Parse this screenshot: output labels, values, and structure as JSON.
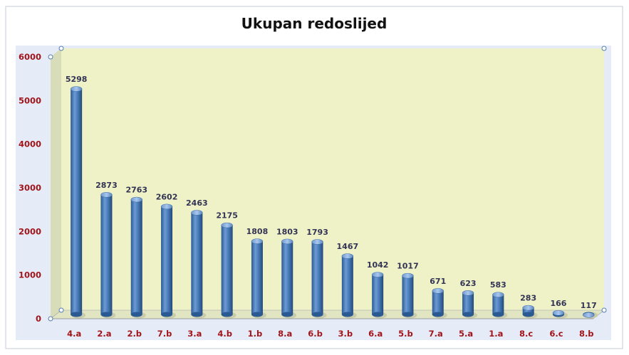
{
  "chart_data": {
    "type": "bar",
    "title": "Ukupan redoslijed",
    "categories": [
      "4.a",
      "2.a",
      "2.b",
      "7.b",
      "3.a",
      "4.b",
      "1.b",
      "8.a",
      "6.b",
      "3.b",
      "6.a",
      "5.b",
      "7.a",
      "5.a",
      "1.a",
      "8.c",
      "6.c",
      "8.b"
    ],
    "values": [
      5298,
      2873,
      2763,
      2602,
      2463,
      2175,
      1808,
      1803,
      1793,
      1467,
      1042,
      1017,
      671,
      623,
      583,
      283,
      166,
      117
    ],
    "data_labels": [
      "5298",
      "2873",
      "2763",
      "2602",
      "2463",
      "2175",
      "1808",
      "1803",
      "1793",
      "1467",
      "1042",
      "1017",
      "671",
      "623",
      "583",
      "283",
      "166",
      "117"
    ],
    "y_ticks": [
      "0",
      "1000",
      "2000",
      "3000",
      "4000",
      "5000",
      "6000"
    ],
    "ylim": [
      0,
      6000
    ],
    "xlabel": "",
    "ylabel": "",
    "grid": false,
    "legend": "none",
    "colors": {
      "bar": "#4a7ebb",
      "bar_dark": "#2b5a93",
      "bar_light": "#8fb6e6",
      "plot_background": "#eef2c6",
      "outer_background": "#e6ecf7",
      "axis_label": "#a2141a",
      "data_label": "#333355"
    }
  }
}
